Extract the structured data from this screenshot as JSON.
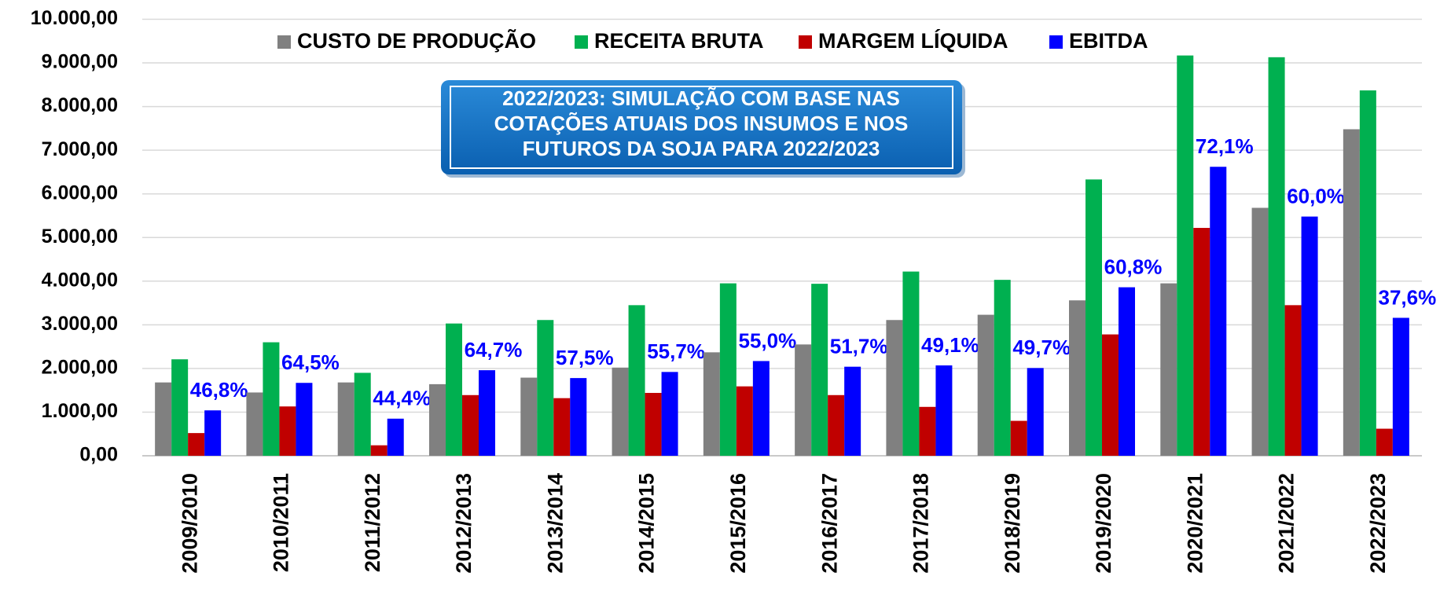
{
  "chart_data": {
    "type": "bar",
    "categories": [
      "2009/2010",
      "2010/2011",
      "2011/2012",
      "2012/2013",
      "2013/2014",
      "2014/2015",
      "2015/2016",
      "2016/2017",
      "2017/2018",
      "2018/2019",
      "2019/2020",
      "2020/2021",
      "2021/2022",
      "2022/2023"
    ],
    "series": [
      {
        "name": "CUSTO DE PRODUÇÃO",
        "color": "#808080",
        "values": [
          1680,
          1450,
          1680,
          1640,
          1790,
          2020,
          2370,
          2550,
          3110,
          3230,
          3560,
          3950,
          5680,
          7480
        ]
      },
      {
        "name": "RECEITA BRUTA",
        "color": "#00b050",
        "values": [
          2210,
          2600,
          1900,
          3030,
          3110,
          3450,
          3950,
          3940,
          4220,
          4030,
          6330,
          9170,
          9130,
          8370
        ]
      },
      {
        "name": "MARGEM LÍQUIDA",
        "color": "#c00000",
        "values": [
          520,
          1130,
          240,
          1390,
          1320,
          1440,
          1590,
          1390,
          1120,
          800,
          2780,
          5220,
          3450,
          620
        ]
      },
      {
        "name": "EBITDA",
        "color": "#0000ff",
        "values": [
          1040,
          1670,
          850,
          1960,
          1780,
          1920,
          2170,
          2040,
          2070,
          2010,
          3860,
          6620,
          5480,
          3160
        ]
      }
    ],
    "annotations": [
      "46,8%",
      "64,5%",
      "44,4%",
      "64,7%",
      "57,5%",
      "55,7%",
      "55,0%",
      "51,7%",
      "49,1%",
      "49,7%",
      "60,8%",
      "72,1%",
      "60,0%",
      "37,6%"
    ],
    "annotation_color": "#0000ff",
    "note": [
      "2022/2023: SIMULAÇÃO COM BASE NAS",
      "COTAÇÕES ATUAIS DOS INSUMOS E NOS",
      "FUTUROS DA SOJA PARA 2022/2023"
    ],
    "ylim": [
      0,
      10000
    ],
    "yticks": [
      {
        "value": 0,
        "label": "0,00"
      },
      {
        "value": 1000,
        "label": "1.000,00"
      },
      {
        "value": 2000,
        "label": "2.000,00"
      },
      {
        "value": 3000,
        "label": "3.000,00"
      },
      {
        "value": 4000,
        "label": "4.000,00"
      },
      {
        "value": 5000,
        "label": "5.000,00"
      },
      {
        "value": 6000,
        "label": "6.000,00"
      },
      {
        "value": 7000,
        "label": "7.000,00"
      },
      {
        "value": 8000,
        "label": "8.000,00"
      },
      {
        "value": 9000,
        "label": "9.000,00"
      },
      {
        "value": 10000,
        "label": "10.000,00"
      }
    ],
    "grid": true,
    "legend": "top"
  }
}
